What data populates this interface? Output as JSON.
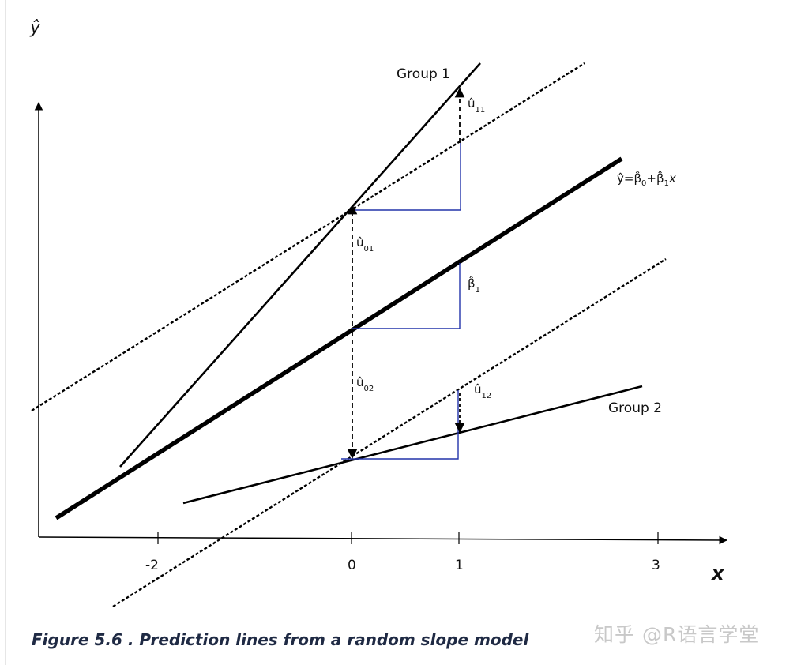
{
  "figure": {
    "y_axis_label": "ŷ",
    "x_axis_label": "x",
    "x_ticks": [
      "-2",
      "0",
      "1",
      "3"
    ],
    "group1_label": "Group 1",
    "group2_label": "Group 2",
    "equation": {
      "yhat": "ŷ",
      "eq": "=",
      "b0": "β̂",
      "sub0": "0",
      "plus": "+",
      "b1": "β̂",
      "sub1": "1",
      "x": "x"
    },
    "u11": {
      "sym": "û",
      "sub": "11"
    },
    "u01": {
      "sym": "û",
      "sub": "01"
    },
    "u02": {
      "sym": "û",
      "sub": "02"
    },
    "u12": {
      "sym": "û",
      "sub": "12"
    },
    "beta1": {
      "sym": "β̂",
      "sub": "1"
    },
    "colors": {
      "lines": "#000000",
      "slope_triangles": "#2233aa"
    }
  },
  "caption": "Figure 5.6 . Prediction lines from a random slope model",
  "watermark": "知乎 @R语言学堂"
}
